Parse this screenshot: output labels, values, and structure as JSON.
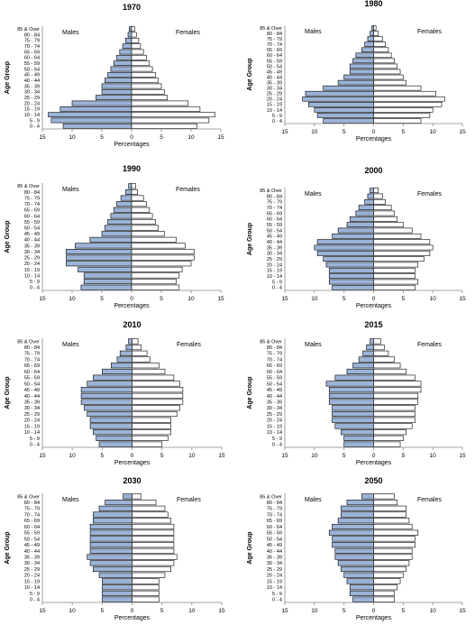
{
  "figure": {
    "age_groups": [
      "0 - 4",
      "5 - 9",
      "10 - 14",
      "15 - 19",
      "20 - 24",
      "25 - 29",
      "30 - 34",
      "35 - 39",
      "40 - 44",
      "45 - 49",
      "50 - 54",
      "55 - 59",
      "60 - 64",
      "65 - 69",
      "70 - 74",
      "75 - 79",
      "80 - 84",
      "85 & Over"
    ],
    "male_label": "Males",
    "female_label": "Females",
    "xlabel": "Percentages",
    "ylabel": "Age Group",
    "x_ticks": [
      -15,
      -10,
      -5,
      0,
      5,
      10,
      15
    ],
    "x_tick_labels": [
      "15",
      "10",
      "5",
      "0",
      "5",
      "10",
      "15"
    ],
    "male_color": "#9bb3d7",
    "female_color": "#ffffff",
    "bar_edge_color": "#000000"
  },
  "chart_data": [
    {
      "type": "bar",
      "title": "1970",
      "xlim": [
        -15,
        15
      ],
      "series": [
        {
          "name": "Males",
          "values": [
            11.5,
            13.5,
            14,
            12,
            10,
            6,
            5,
            5,
            4.5,
            4,
            3.5,
            3,
            2.5,
            2,
            1.5,
            1,
            0.6,
            0.4
          ]
        },
        {
          "name": "Females",
          "values": [
            11,
            13,
            14,
            11.5,
            9.5,
            6,
            5.5,
            5,
            4.5,
            4,
            3.5,
            3,
            2.5,
            2,
            1.5,
            1.2,
            0.8,
            0.5
          ]
        }
      ]
    },
    {
      "type": "bar",
      "title": "1980",
      "xlim": [
        -15,
        15
      ],
      "series": [
        {
          "name": "Males",
          "values": [
            8.5,
            9.5,
            10,
            11,
            12,
            11.5,
            8.5,
            6,
            5,
            4,
            4,
            3.5,
            3,
            2,
            1.5,
            1,
            0.6,
            0.3
          ]
        },
        {
          "name": "Females",
          "values": [
            8,
            9.5,
            10,
            11.5,
            12,
            10.5,
            8,
            5.5,
            5,
            4.5,
            4,
            3.5,
            3,
            2.5,
            2,
            1.5,
            0.8,
            0.4
          ]
        }
      ]
    },
    {
      "type": "bar",
      "title": "1990",
      "xlim": [
        -15,
        15
      ],
      "series": [
        {
          "name": "Males",
          "values": [
            8.5,
            8,
            8,
            9,
            11,
            11,
            11,
            9.5,
            7,
            5,
            4.5,
            4,
            3.5,
            3,
            2.5,
            1.8,
            1,
            0.5
          ]
        },
        {
          "name": "Females",
          "values": [
            8,
            7.5,
            8,
            8.5,
            10,
            10.5,
            10.5,
            9,
            7.5,
            5.5,
            4.5,
            4,
            3.5,
            3,
            2.5,
            2,
            1,
            0.7
          ]
        }
      ]
    },
    {
      "type": "bar",
      "title": "2000",
      "xlim": [
        -15,
        15
      ],
      "series": [
        {
          "name": "Males",
          "values": [
            7,
            7.5,
            7.5,
            7.5,
            8,
            8.5,
            9.5,
            10,
            9.5,
            7,
            6,
            4.5,
            4,
            3,
            2.5,
            1.5,
            1,
            0.6
          ]
        },
        {
          "name": "Females",
          "values": [
            7,
            7.5,
            7,
            7,
            7.5,
            8.5,
            9.5,
            10,
            9.5,
            8,
            6.5,
            5,
            4,
            3.5,
            3,
            2,
            1.5,
            0.8
          ]
        }
      ]
    },
    {
      "type": "bar",
      "title": "2010",
      "xlim": [
        -15,
        15
      ],
      "series": [
        {
          "name": "Males",
          "values": [
            5.5,
            6,
            6.5,
            7,
            7,
            7.5,
            8,
            8.5,
            8.5,
            8.5,
            7.5,
            6.5,
            5,
            3.5,
            2.5,
            2,
            1,
            0.6
          ]
        },
        {
          "name": "Females",
          "values": [
            5,
            6,
            6.5,
            6.5,
            6.5,
            7.5,
            8,
            8.5,
            8.5,
            8.5,
            8,
            7,
            5.5,
            4.5,
            3,
            2.5,
            1.5,
            1
          ]
        }
      ]
    },
    {
      "type": "bar",
      "title": "2015",
      "xlim": [
        -15,
        15
      ],
      "series": [
        {
          "name": "Males",
          "values": [
            5,
            5,
            5.5,
            6.5,
            7,
            7,
            7,
            7.5,
            7.5,
            7.5,
            8,
            6.5,
            4.5,
            3.5,
            2.5,
            1.8,
            1.2,
            0.6
          ]
        },
        {
          "name": "Females",
          "values": [
            4.5,
            5,
            5.5,
            6.5,
            7,
            7,
            7,
            7.5,
            7.5,
            8,
            8,
            7,
            5.5,
            4.5,
            3.5,
            2.5,
            1.8,
            1.2
          ]
        }
      ]
    },
    {
      "type": "bar",
      "title": "2030",
      "xlim": [
        -15,
        15
      ],
      "series": [
        {
          "name": "Males",
          "values": [
            5,
            5,
            5,
            5,
            5.5,
            6.5,
            7,
            7.5,
            7,
            7,
            7,
            7,
            7,
            6.5,
            6.5,
            5.5,
            4.5,
            1.5
          ]
        },
        {
          "name": "Females",
          "values": [
            4.5,
            4.5,
            4.5,
            4.5,
            5.5,
            6.5,
            7,
            7.5,
            7,
            7,
            7,
            7,
            7,
            6.5,
            6,
            5.5,
            4,
            1.5
          ]
        }
      ]
    },
    {
      "type": "bar",
      "title": "2050",
      "xlim": [
        -15,
        15
      ],
      "series": [
        {
          "name": "Males",
          "values": [
            3.5,
            4,
            4,
            4.5,
            5,
            5.5,
            6,
            6.5,
            6.5,
            7,
            7,
            7.5,
            7,
            6,
            5.5,
            5.5,
            4.5,
            2
          ]
        },
        {
          "name": "Females",
          "values": [
            3.5,
            3.5,
            4,
            4.5,
            5,
            5.5,
            6,
            6.5,
            6.5,
            7,
            7,
            7.5,
            6.5,
            6,
            5.5,
            5.5,
            4,
            3.5
          ]
        }
      ]
    }
  ]
}
